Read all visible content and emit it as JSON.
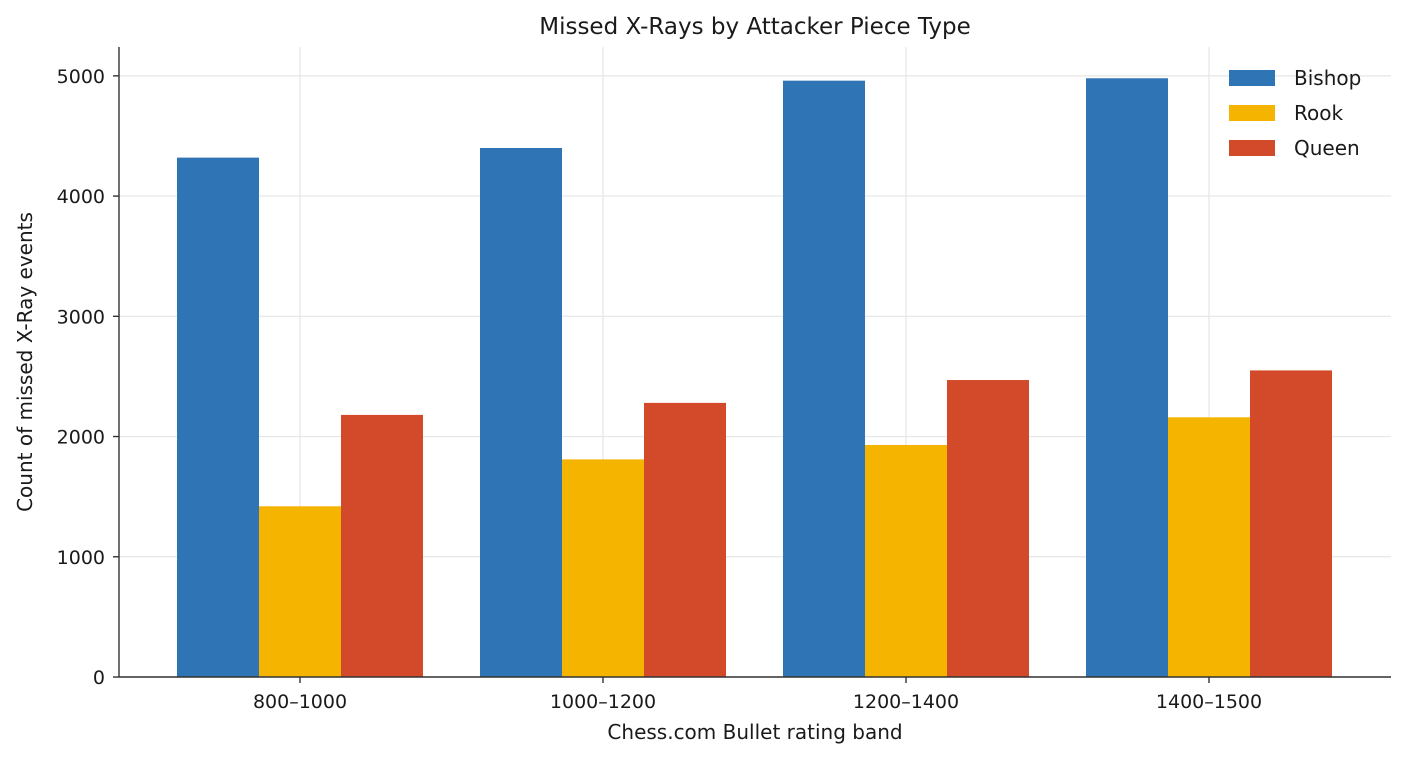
{
  "chart_data": {
    "type": "bar",
    "title": "Missed X-Rays by Attacker Piece Type",
    "xlabel": "Chess.com Bullet rating band",
    "ylabel": "Count of missed X-Ray events",
    "categories": [
      "800–1000",
      "1000–1200",
      "1200–1400",
      "1400–1500"
    ],
    "series": [
      {
        "name": "Bishop",
        "color": "#2f75b5",
        "values": [
          4320,
          4400,
          4960,
          4980
        ]
      },
      {
        "name": "Rook",
        "color": "#f4b400",
        "values": [
          1420,
          1810,
          1930,
          2160
        ]
      },
      {
        "name": "Queen",
        "color": "#d24a2a",
        "values": [
          2180,
          2280,
          2470,
          2550
        ]
      }
    ],
    "ylim": [
      0,
      5240
    ],
    "yticks": [
      0,
      1000,
      2000,
      3000,
      4000,
      5000
    ],
    "grid": true,
    "legend": "top-right"
  }
}
